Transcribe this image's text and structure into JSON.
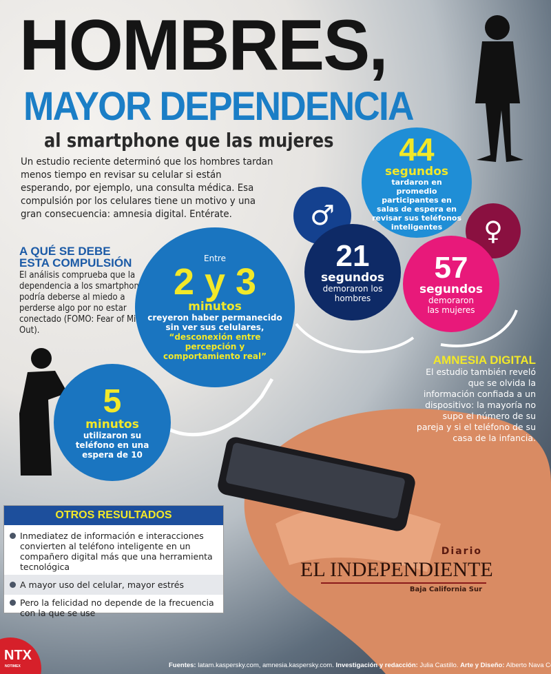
{
  "header": {
    "title": "HOMBRES,",
    "subtitle": "MAYOR DEPENDENCIA",
    "tagline": "al smartphone que las mujeres",
    "intro": "Un estudio reciente determinó que los hombres tardan menos tiempo en revisar su celular si están esperando, por ejemplo, una consulta médica. Esa compulsión por los celulares tiene un motivo y una gran consecuencia: amnesia digital. Entérate."
  },
  "compulsion": {
    "heading_1": "A QUÉ SE DEBE",
    "heading_2": "ESTA COMPULSIÓN",
    "text": "El análisis comprueba que la dependencia a los smartphones podría deberse al miedo a perderse algo por no estar conectado",
    "note": "(FOMO: Fear of Missing Out)."
  },
  "stats": {
    "avg": {
      "value": "44",
      "unit": "segundos",
      "text": "tardaron en promedio participantes en salas de espera en revisar sus teléfonos inteligentes"
    },
    "men": {
      "value": "21",
      "unit": "segundos",
      "text": "demoraron los hombres",
      "icon": "male-symbol"
    },
    "women": {
      "value": "57",
      "unit": "segundos",
      "text": "demoraron las mujeres",
      "icon": "female-symbol"
    },
    "perception": {
      "pre": "Entre",
      "value": "2 y 3",
      "unit": "minutos",
      "text": "creyeron haber permanecido sin ver sus celulares,",
      "quote": "“desconexión entre percepción y comportamiento real”"
    },
    "usage": {
      "value": "5",
      "unit": "minutos",
      "text": "utilizaron su teléfono en una espera de 10"
    }
  },
  "amnesia": {
    "heading": "AMNESIA DIGITAL",
    "text": "El estudio también reveló que se olvida la información confiada a un dispositivo: la mayoría no supo el número de su pareja y si el teléfono de su casa de la infancia."
  },
  "otros": {
    "heading": "OTROS RESULTADOS",
    "items": [
      "Inmediatez de información e interacciones convierten al teléfono inteligente en un compañero digital más que una herramienta tecnológica",
      "A mayor uso del celular, mayor estrés",
      "Pero la felicidad no depende de la frecuencia con la que se use"
    ]
  },
  "logo": {
    "diario": "Diario",
    "el": "EL",
    "name": "INDEPENDIENTE",
    "region": "Baja California Sur"
  },
  "ntx": {
    "name": "NTX",
    "sub": "NOTIMEX"
  },
  "footer": {
    "sources_label": "Fuentes:",
    "sources": "latam.kaspersky.com, amnesia.kaspersky.com.",
    "research_label": "Investigación y redacción:",
    "research": "Julia Castillo.",
    "art_label": "Arte y Diseño:",
    "art": "Alberto Nava Consultoria."
  },
  "colors": {
    "blue": "#1b7ec6",
    "navy": "#0e2a66",
    "pink": "#e8197a",
    "maroon": "#8a1040",
    "yellow": "#f2e829"
  }
}
